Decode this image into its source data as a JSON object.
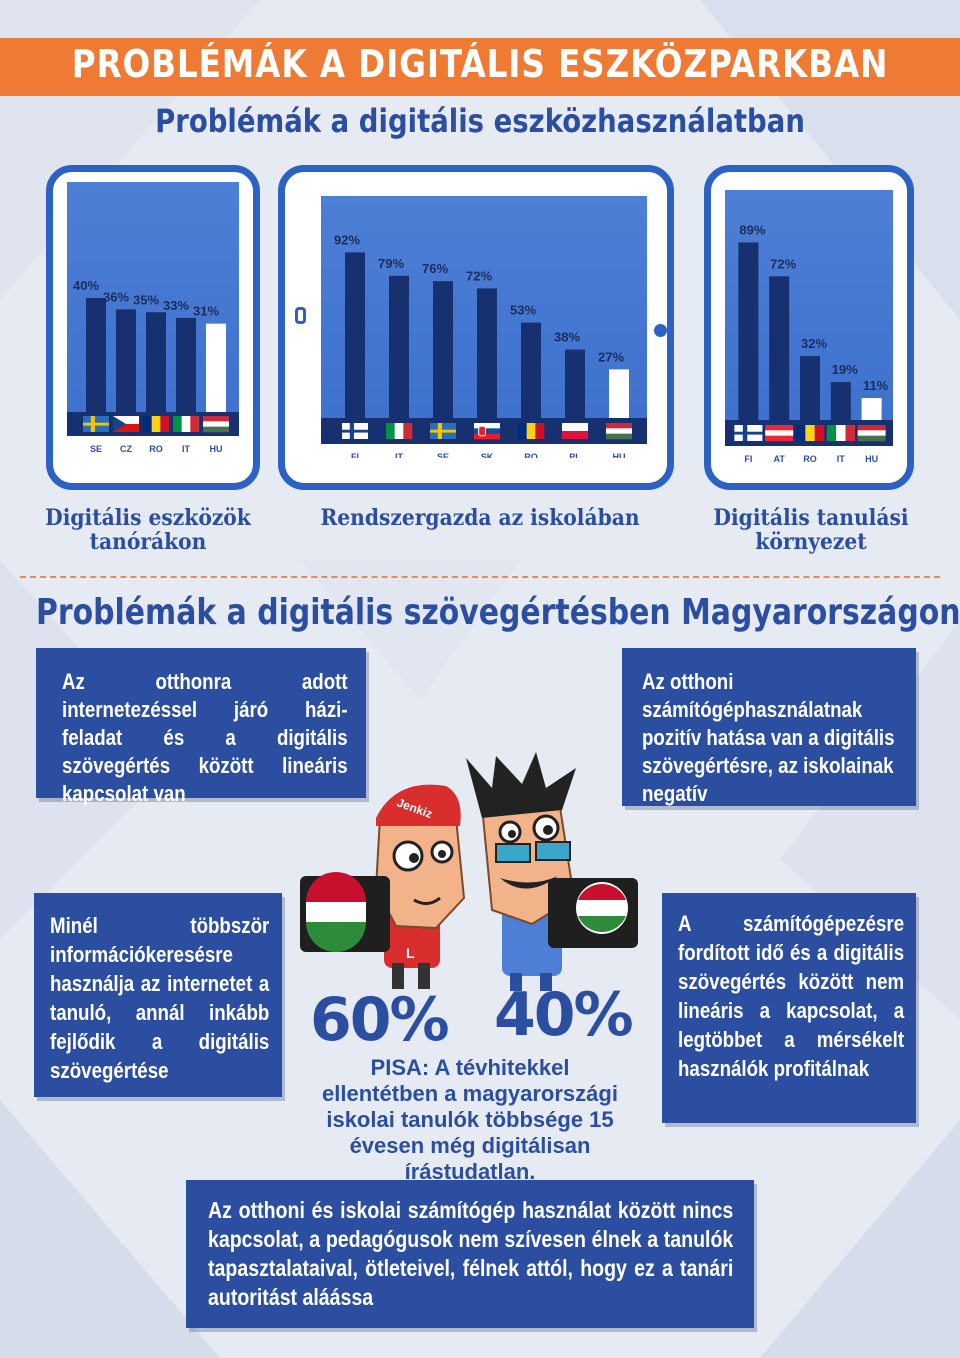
{
  "header": {
    "title": "PROBLÉMÁK A DIGITÁLIS ESZKÖZPARKBAN",
    "subtitle": "Problémák a digitális eszközhasználatban"
  },
  "chart_data": [
    {
      "type": "bar",
      "title": "Digitális eszközök tanórákon",
      "categories": [
        "SE",
        "CZ",
        "RO",
        "IT",
        "HU"
      ],
      "values": [
        40,
        36,
        35,
        33,
        31
      ],
      "value_labels": [
        "40%",
        "36%",
        "35%",
        "33%",
        "31%"
      ],
      "highlight": "HU",
      "ylim": [
        0,
        100
      ]
    },
    {
      "type": "bar",
      "title": "Rendszergazda az iskolában",
      "categories": [
        "FI",
        "IT",
        "SE",
        "SK",
        "RO",
        "PL",
        "HU"
      ],
      "values": [
        92,
        79,
        76,
        72,
        53,
        38,
        27
      ],
      "value_labels": [
        "92%",
        "79%",
        "76%",
        "72%",
        "53%",
        "38%",
        "27%"
      ],
      "highlight": "HU",
      "ylim": [
        0,
        100
      ]
    },
    {
      "type": "bar",
      "title": "Digitális tanulási környezet",
      "categories": [
        "FI",
        "AT",
        "RO",
        "IT",
        "HU"
      ],
      "values": [
        89,
        72,
        32,
        19,
        11
      ],
      "value_labels": [
        "89%",
        "72%",
        "32%",
        "19%",
        "11%"
      ],
      "highlight": "HU",
      "ylim": [
        0,
        100
      ]
    }
  ],
  "section": {
    "title": "Problémák a digitális szövegértésben Magyarországon"
  },
  "boxes": {
    "top_left": "Az otthonra adott internetezéssel járó házi- feladat és a digitális szövegértés között lineáris kapcsolat van",
    "top_right": "Az otthoni számítógéphasználatnak pozitív hatása van a digitális szövegértésre, az iskolainak negatív",
    "mid_left": "Minél többször információkeresésre használja az internetet a tanuló, annál inkább fejlődik a digitális szövegértése",
    "mid_right": "A számítógépezésre fordított idő és a digitális szövegértés között nem lineáris a kapcsolat, a legtöbbet a mérsékelt használók profitálnak",
    "bottom": "Az otthoni és iskolai számítógép használat között nincs kapcsolat, a pedagógusok nem szívesen élnek a tanulók tapasztalataival, ötleteivel, félnek attól, hogy ez a tanári autoritást aláássa"
  },
  "pisa": {
    "pct_left": "60%",
    "pct_right": "40%",
    "text": "PISA: A tévhitekkel ellentétben a magyarországi iskolai tanulók többsége 15 évesen még digitálisan írástudatlan.",
    "cap_text": "Jenkiz",
    "shirt_letter": "L"
  },
  "colors": {
    "accent": "#ee7a34",
    "blue_dark": "#2b4ea0",
    "tablet_blue": "#2b62c4",
    "screen_blue": "#3f72cf",
    "bar_navy": "#17306f",
    "bar_highlight": "#ffffff"
  }
}
